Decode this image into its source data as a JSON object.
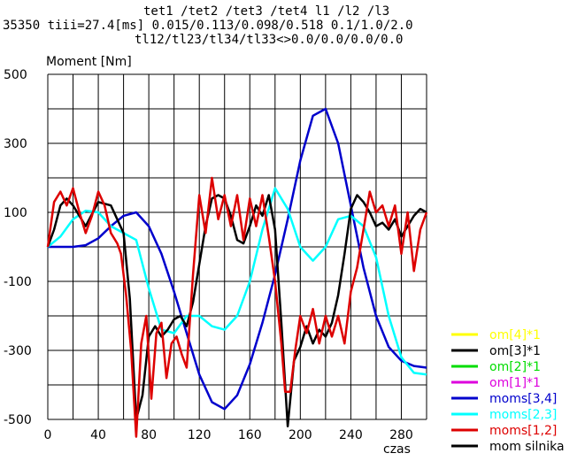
{
  "header": {
    "line1": "tet1  /tet2  /tet3  /tet4     l1 /l2 /l3",
    "line2": "35350  tiii=27.4[ms]    0.015/0.113/0.098/0.518   0.1/1.0/2.0",
    "line3": "tl12/tl23/tl34/tl33<>0.0/0.0/0.0/0.0"
  },
  "chart_data": {
    "type": "line",
    "ylabel": "Moment [Nm]",
    "xlabel": "czas",
    "xlim": [
      0,
      300
    ],
    "ylim": [
      -500,
      500
    ],
    "grid": true,
    "x_ticks": [
      0,
      40,
      80,
      120,
      160,
      200,
      240,
      280
    ],
    "y_ticks": [
      -500,
      -300,
      -100,
      100,
      300,
      500
    ],
    "series": [
      {
        "name": "om[4]*1",
        "color": "#ffff00",
        "x": [],
        "y": []
      },
      {
        "name": "om[3]*1",
        "color": "#000000",
        "x": [],
        "y": []
      },
      {
        "name": "om[2]*1",
        "color": "#00dd00",
        "x": [],
        "y": []
      },
      {
        "name": "om[1]*1",
        "color": "#dd00dd",
        "x": [],
        "y": []
      },
      {
        "name": "moms[3,4]",
        "color": "#0000cc",
        "x": [
          0,
          20,
          30,
          40,
          50,
          60,
          70,
          80,
          90,
          100,
          110,
          120,
          130,
          140,
          150,
          160,
          170,
          180,
          190,
          200,
          210,
          220,
          230,
          240,
          250,
          260,
          270,
          280,
          290,
          300
        ],
        "y": [
          0,
          0,
          5,
          25,
          60,
          90,
          100,
          60,
          -20,
          -130,
          -250,
          -370,
          -450,
          -470,
          -430,
          -340,
          -220,
          -80,
          80,
          250,
          380,
          400,
          300,
          120,
          -60,
          -200,
          -290,
          -330,
          -345,
          -350
        ]
      },
      {
        "name": "moms[2,3]",
        "color": "#00ffff",
        "x": [
          0,
          10,
          20,
          30,
          40,
          50,
          60,
          70,
          80,
          90,
          100,
          110,
          120,
          130,
          140,
          150,
          160,
          170,
          180,
          190,
          200,
          210,
          220,
          230,
          240,
          250,
          260,
          270,
          280,
          290,
          300
        ],
        "y": [
          0,
          30,
          80,
          105,
          100,
          60,
          40,
          20,
          -120,
          -240,
          -250,
          -200,
          -200,
          -230,
          -240,
          -200,
          -100,
          50,
          170,
          110,
          0,
          -40,
          0,
          80,
          90,
          60,
          -30,
          -200,
          -320,
          -365,
          -370
        ]
      },
      {
        "name": "moms[1,2]",
        "color": "#dd0000",
        "x": [
          0,
          5,
          10,
          15,
          20,
          25,
          30,
          35,
          40,
          45,
          50,
          55,
          58,
          62,
          66,
          70,
          74,
          78,
          82,
          86,
          90,
          94,
          98,
          102,
          106,
          110,
          115,
          120,
          125,
          130,
          135,
          140,
          145,
          150,
          155,
          160,
          165,
          170,
          175,
          180,
          185,
          188,
          192,
          196,
          200,
          205,
          210,
          215,
          220,
          225,
          230,
          235,
          240,
          245,
          250,
          255,
          260,
          265,
          270,
          275,
          280,
          285,
          290,
          295,
          300
        ],
        "y": [
          0,
          130,
          160,
          120,
          170,
          100,
          40,
          90,
          160,
          120,
          40,
          10,
          -20,
          -140,
          -300,
          -550,
          -280,
          -200,
          -440,
          -250,
          -220,
          -380,
          -280,
          -260,
          -310,
          -350,
          -80,
          150,
          40,
          200,
          80,
          150,
          60,
          150,
          20,
          140,
          60,
          150,
          30,
          -100,
          -280,
          -420,
          -420,
          -300,
          -200,
          -250,
          -180,
          -280,
          -200,
          -260,
          -200,
          -280,
          -130,
          -60,
          50,
          160,
          100,
          120,
          60,
          120,
          -20,
          100,
          -70,
          50,
          100
        ]
      },
      {
        "name": "mom silnika",
        "color": "#000000",
        "x": [
          0,
          5,
          10,
          15,
          20,
          30,
          40,
          50,
          60,
          65,
          70,
          75,
          80,
          85,
          90,
          95,
          100,
          105,
          110,
          115,
          120,
          125,
          130,
          135,
          140,
          145,
          150,
          155,
          160,
          165,
          170,
          175,
          180,
          185,
          190,
          195,
          200,
          205,
          210,
          215,
          220,
          225,
          230,
          235,
          240,
          245,
          250,
          255,
          260,
          265,
          270,
          275,
          280,
          285,
          290,
          295,
          300
        ],
        "y": [
          0,
          50,
          120,
          140,
          120,
          60,
          130,
          120,
          40,
          -150,
          -500,
          -430,
          -260,
          -230,
          -260,
          -240,
          -210,
          -200,
          -230,
          -160,
          -50,
          60,
          140,
          150,
          140,
          90,
          20,
          10,
          60,
          120,
          90,
          150,
          50,
          -220,
          -520,
          -330,
          -290,
          -230,
          -280,
          -240,
          -260,
          -220,
          -140,
          -20,
          110,
          150,
          130,
          100,
          60,
          70,
          50,
          80,
          30,
          60,
          90,
          110,
          100
        ]
      }
    ]
  }
}
